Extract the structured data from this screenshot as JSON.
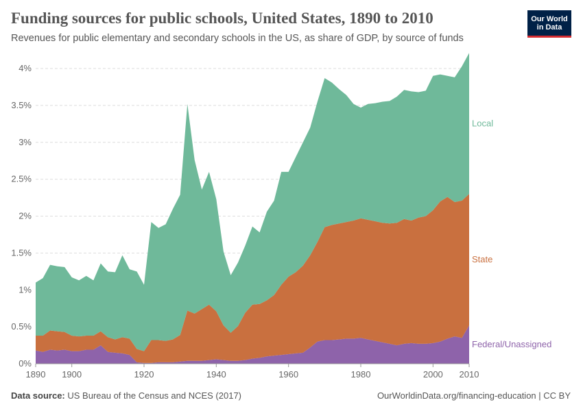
{
  "header": {
    "title": "Funding sources for public schools, United States, 1890 to 2010",
    "subtitle": "Revenues for public elementary and secondary schools in the US, as share of GDP, by source of funds"
  },
  "logo": {
    "line1": "Our World",
    "line2": "in Data"
  },
  "footer": {
    "source_label": "Data source:",
    "source_text": "US Bureau of the Census and NCES (2017)",
    "url_text": "OurWorldinData.org/financing-education | CC BY"
  },
  "chart_data": {
    "type": "area",
    "stacked": true,
    "grid": true,
    "xlim": [
      1890,
      2010
    ],
    "ylim": [
      0,
      4
    ],
    "x_ticks": [
      1890,
      1900,
      1920,
      1940,
      1960,
      1980,
      2000,
      2010
    ],
    "x_tick_labels": [
      "1890",
      "1900",
      "1920",
      "1940",
      "1960",
      "1980",
      "2000",
      "2010"
    ],
    "y_ticks": [
      0,
      0.5,
      1,
      1.5,
      2,
      2.5,
      3,
      3.5,
      4
    ],
    "y_tick_labels": [
      "0%",
      "0.5%",
      "1%",
      "1.5%",
      "2%",
      "2.5%",
      "3%",
      "3.5%",
      "4%"
    ],
    "x": [
      1890,
      1892,
      1894,
      1896,
      1898,
      1900,
      1902,
      1904,
      1906,
      1908,
      1910,
      1912,
      1914,
      1916,
      1918,
      1920,
      1922,
      1924,
      1926,
      1928,
      1930,
      1932,
      1934,
      1936,
      1938,
      1940,
      1942,
      1944,
      1946,
      1948,
      1950,
      1952,
      1954,
      1956,
      1958,
      1960,
      1962,
      1964,
      1966,
      1968,
      1970,
      1972,
      1974,
      1976,
      1978,
      1980,
      1982,
      1984,
      1986,
      1988,
      1990,
      1992,
      1994,
      1996,
      1998,
      2000,
      2002,
      2004,
      2006,
      2008,
      2010
    ],
    "series": [
      {
        "name": "Federal/Unassigned",
        "color": "#8e63aa",
        "values": [
          0.18,
          0.16,
          0.19,
          0.18,
          0.19,
          0.17,
          0.17,
          0.19,
          0.19,
          0.25,
          0.16,
          0.15,
          0.14,
          0.12,
          0.02,
          0.01,
          0.01,
          0.02,
          0.02,
          0.02,
          0.03,
          0.04,
          0.04,
          0.04,
          0.05,
          0.06,
          0.05,
          0.04,
          0.04,
          0.05,
          0.07,
          0.08,
          0.1,
          0.11,
          0.12,
          0.13,
          0.14,
          0.15,
          0.22,
          0.3,
          0.32,
          0.32,
          0.33,
          0.34,
          0.34,
          0.35,
          0.33,
          0.31,
          0.29,
          0.27,
          0.25,
          0.27,
          0.28,
          0.27,
          0.27,
          0.28,
          0.3,
          0.34,
          0.37,
          0.35,
          0.52
        ]
      },
      {
        "name": "State",
        "color": "#c9703f",
        "values": [
          0.2,
          0.22,
          0.26,
          0.26,
          0.24,
          0.21,
          0.2,
          0.19,
          0.19,
          0.19,
          0.2,
          0.18,
          0.22,
          0.22,
          0.18,
          0.16,
          0.31,
          0.3,
          0.29,
          0.31,
          0.36,
          0.68,
          0.64,
          0.7,
          0.75,
          0.65,
          0.47,
          0.38,
          0.47,
          0.64,
          0.73,
          0.73,
          0.76,
          0.82,
          0.95,
          1.05,
          1.1,
          1.18,
          1.25,
          1.35,
          1.53,
          1.56,
          1.57,
          1.58,
          1.6,
          1.62,
          1.62,
          1.62,
          1.62,
          1.63,
          1.66,
          1.69,
          1.66,
          1.71,
          1.73,
          1.8,
          1.9,
          1.92,
          1.82,
          1.86,
          1.78
        ]
      },
      {
        "name": "Local",
        "color": "#6fb99a",
        "values": [
          0.72,
          0.78,
          0.89,
          0.88,
          0.88,
          0.79,
          0.76,
          0.81,
          0.75,
          0.92,
          0.89,
          0.91,
          1.11,
          0.94,
          1.05,
          0.9,
          1.6,
          1.52,
          1.58,
          1.77,
          1.9,
          2.8,
          2.08,
          1.62,
          1.8,
          1.52,
          1.0,
          0.78,
          0.86,
          0.91,
          1.06,
          0.97,
          1.2,
          1.28,
          1.53,
          1.42,
          1.56,
          1.67,
          1.73,
          1.9,
          2.02,
          1.93,
          1.82,
          1.72,
          1.58,
          1.5,
          1.57,
          1.6,
          1.64,
          1.66,
          1.71,
          1.75,
          1.75,
          1.7,
          1.7,
          1.82,
          1.72,
          1.64,
          1.69,
          1.82,
          1.91
        ]
      }
    ]
  }
}
